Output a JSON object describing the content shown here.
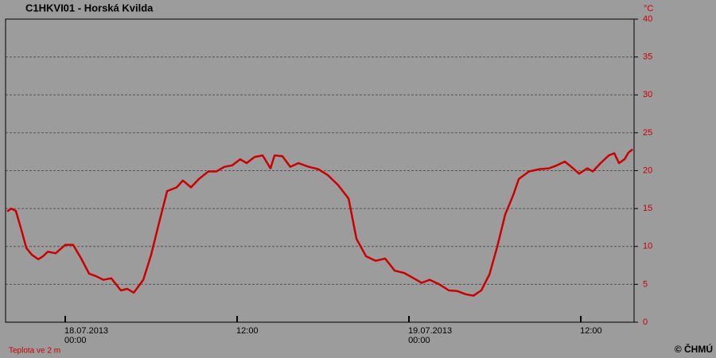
{
  "chart_data": {
    "type": "line",
    "title": "C1HKVI01 - Horská Kvilda",
    "ylabel": "°C",
    "credit": "© ČHMÚ",
    "ylim": [
      0,
      40
    ],
    "yticks": [
      0,
      5,
      10,
      15,
      20,
      25,
      30,
      35,
      40
    ],
    "xlim": [
      "2013-07-17 19:50",
      "2013-07-19 15:43"
    ],
    "xticks": [
      {
        "value": "2013-07-18 00:00",
        "label": [
          "18.07.2013",
          "00:00"
        ]
      },
      {
        "value": "2013-07-18 12:00",
        "label": [
          "12:00"
        ]
      },
      {
        "value": "2013-07-19 00:00",
        "label": [
          "19.07.2013",
          "00:00"
        ]
      },
      {
        "value": "2013-07-19 12:00",
        "label": [
          "12:00"
        ]
      }
    ],
    "grid": true,
    "x": [
      "2013-07-17 19:57",
      "2013-07-17 20:13",
      "2013-07-17 20:33",
      "2013-07-17 20:57",
      "2013-07-17 21:17",
      "2013-07-17 21:40",
      "2013-07-17 22:07",
      "2013-07-17 22:27",
      "2013-07-17 22:47",
      "2013-07-17 23:20",
      "2013-07-18 00:00",
      "2013-07-18 00:33",
      "2013-07-18 01:07",
      "2013-07-18 01:40",
      "2013-07-18 02:07",
      "2013-07-18 02:40",
      "2013-07-18 03:13",
      "2013-07-18 03:53",
      "2013-07-18 04:20",
      "2013-07-18 04:47",
      "2013-07-18 05:27",
      "2013-07-18 06:00",
      "2013-07-18 06:33",
      "2013-07-18 07:07",
      "2013-07-18 07:47",
      "2013-07-18 08:13",
      "2013-07-18 08:47",
      "2013-07-18 09:20",
      "2013-07-18 10:00",
      "2013-07-18 10:33",
      "2013-07-18 11:07",
      "2013-07-18 11:40",
      "2013-07-18 12:13",
      "2013-07-18 12:40",
      "2013-07-18 13:13",
      "2013-07-18 13:47",
      "2013-07-18 14:20",
      "2013-07-18 14:37",
      "2013-07-18 15:10",
      "2013-07-18 15:43",
      "2013-07-18 16:17",
      "2013-07-18 17:00",
      "2013-07-18 17:40",
      "2013-07-18 18:20",
      "2013-07-18 19:03",
      "2013-07-18 19:47",
      "2013-07-18 20:20",
      "2013-07-18 21:00",
      "2013-07-18 21:40",
      "2013-07-18 22:20",
      "2013-07-18 23:00",
      "2013-07-18 23:40",
      "2013-07-19 00:20",
      "2013-07-19 00:53",
      "2013-07-19 01:27",
      "2013-07-19 02:07",
      "2013-07-19 02:47",
      "2013-07-19 03:23",
      "2013-07-19 03:57",
      "2013-07-19 04:30",
      "2013-07-19 05:03",
      "2013-07-19 05:37",
      "2013-07-19 06:10",
      "2013-07-19 06:43",
      "2013-07-19 07:17",
      "2013-07-19 07:40",
      "2013-07-19 08:23",
      "2013-07-19 09:07",
      "2013-07-19 09:47",
      "2013-07-19 10:20",
      "2013-07-19 10:53",
      "2013-07-19 11:20",
      "2013-07-19 11:53",
      "2013-07-19 12:27",
      "2013-07-19 12:50",
      "2013-07-19 13:23",
      "2013-07-19 13:57",
      "2013-07-19 14:20",
      "2013-07-19 14:40",
      "2013-07-19 15:03",
      "2013-07-19 15:20",
      "2013-07-19 15:37"
    ],
    "series": [
      {
        "name": "Teplota ve 2 m",
        "color": "#cc0000",
        "values": [
          14.6,
          15.0,
          14.7,
          12.1,
          9.8,
          8.9,
          8.3,
          8.7,
          9.3,
          9.1,
          10.2,
          10.2,
          8.4,
          6.4,
          6.1,
          5.6,
          5.8,
          4.2,
          4.4,
          3.9,
          5.6,
          8.9,
          13.1,
          17.3,
          17.8,
          18.7,
          17.8,
          18.9,
          19.9,
          19.9,
          20.5,
          20.7,
          21.5,
          21.0,
          21.8,
          22.0,
          20.3,
          22.0,
          21.9,
          20.5,
          21.0,
          20.5,
          20.2,
          19.4,
          18.1,
          16.3,
          11.0,
          8.7,
          8.1,
          8.4,
          6.8,
          6.5,
          5.8,
          5.2,
          5.6,
          5.0,
          4.2,
          4.1,
          3.7,
          3.5,
          4.2,
          6.3,
          10.0,
          14.2,
          16.8,
          18.9,
          19.9,
          20.2,
          20.3,
          20.7,
          21.2,
          20.5,
          19.6,
          20.3,
          19.9,
          21.0,
          22.0,
          22.3,
          21.0,
          21.5,
          22.4,
          22.8
        ]
      }
    ]
  }
}
